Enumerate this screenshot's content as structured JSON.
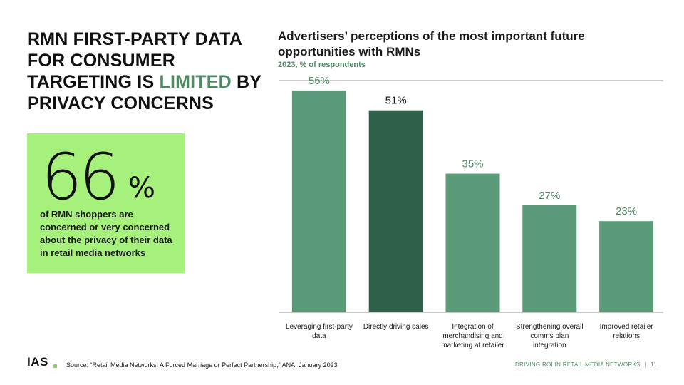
{
  "slide": {
    "headline_parts": {
      "before": "RMN FIRST-PARTY DATA FOR CONSUMER TARGETING IS ",
      "highlight": "LIMITED",
      "after": " BY PRIVACY CONCERNS"
    },
    "stat": {
      "number": "66",
      "unit": "%",
      "description": "of RMN shoppers are concerned or very concerned about the privacy of their data in retail media networks"
    },
    "source": "Source: “Retail Media Networks: A Forced Marriage or Perfect Partnership,” ANA, January 2023",
    "logo": "IAS",
    "footer_text": "DRIVING ROI IN RETAIL MEDIA NETWORKS",
    "footer_separator": "|",
    "page_number": "11"
  },
  "colors": {
    "accent_green": "#4f8a63",
    "bar_default": "#5a9a78",
    "bar_highlight": "#2f6049",
    "stat_card_bg": "#a6f07c",
    "axis_line": "#999999"
  },
  "chart_data": {
    "type": "bar",
    "title": "Advertisers’ perceptions of the most important future opportunities with RMNs",
    "subtitle": "2023, % of respondents",
    "categories": [
      "Leveraging first-party data",
      "Directly driving sales",
      "Integration of merchandising and marketing at retailer",
      "Strengthening overall comms plan integration",
      "Improved retailer relations"
    ],
    "values": [
      56,
      51,
      35,
      27,
      23
    ],
    "value_labels": [
      "56%",
      "51%",
      "35%",
      "27%",
      "23%"
    ],
    "highlight_index": 1,
    "ylim": [
      0,
      60
    ],
    "grid": false,
    "xlabel": "",
    "ylabel": ""
  }
}
